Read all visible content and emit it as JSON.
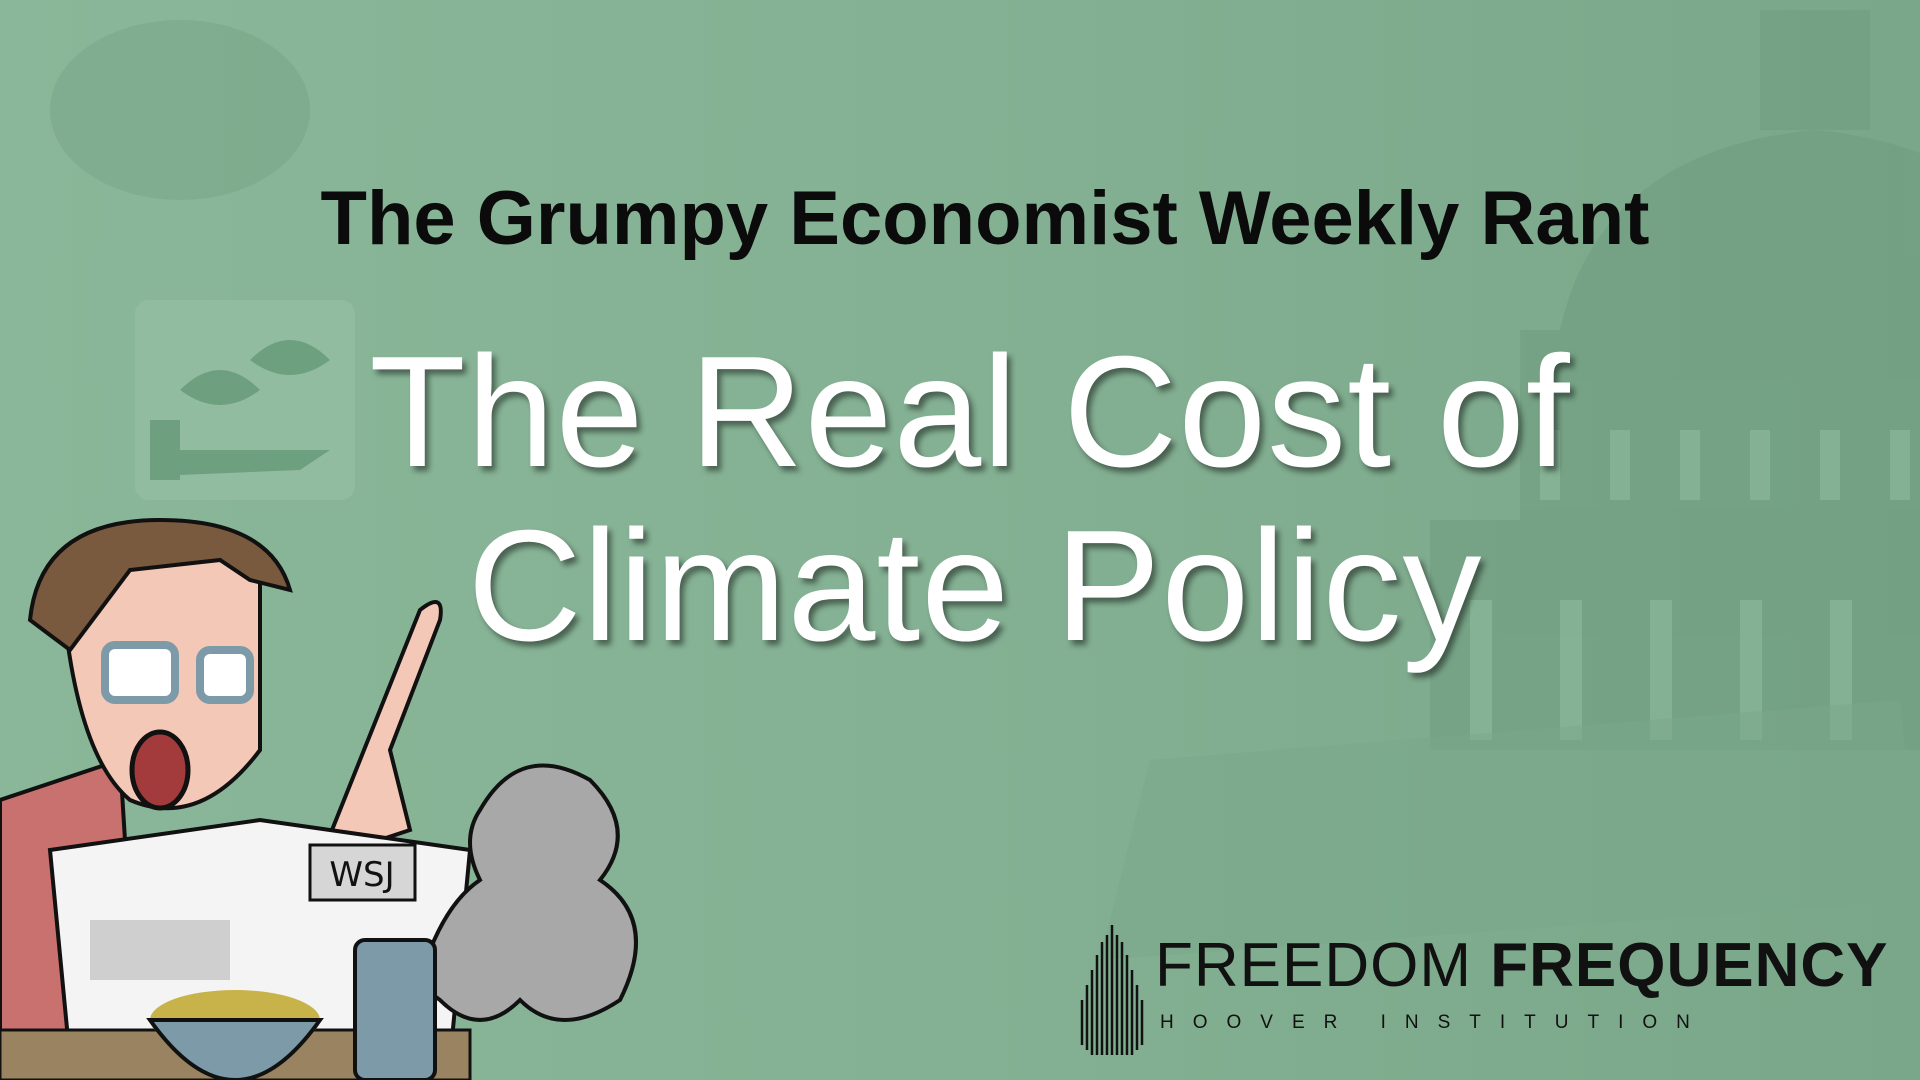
{
  "header": {
    "kicker": "The Grumpy Economist Weekly Rant"
  },
  "title": {
    "line1": "The Real Cost of",
    "line2": "Climate Policy"
  },
  "illustration": {
    "newspaper_label": "WSJ"
  },
  "logo": {
    "word_light": "FREEDOM",
    "word_bold": "FREQUENCY",
    "subtitle": "HOOVER INSTITUTION"
  },
  "colors": {
    "background": "#86b195",
    "title": "#ffffff",
    "kicker": "#0b0b0b"
  }
}
